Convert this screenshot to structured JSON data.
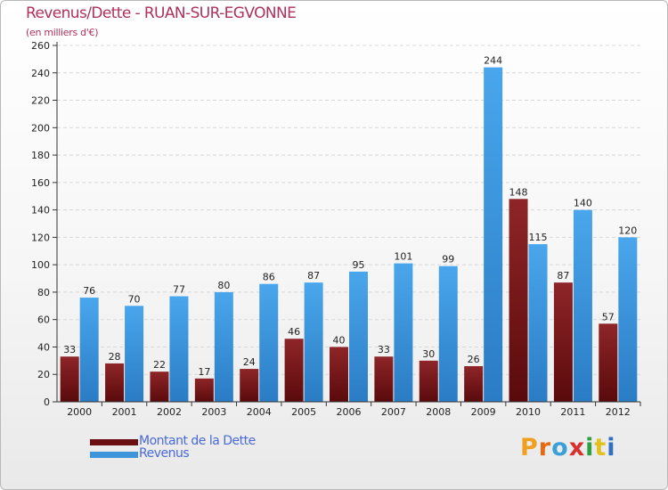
{
  "header": {
    "title": "Revenus/Dette - RUAN-SUR-EGVONNE",
    "subtitle": "(en milliers d'€)"
  },
  "colors": {
    "title": "#b0305c",
    "dette": "#7a1518",
    "revenus": "#3d96dc",
    "legend_text": "#4a6ad8"
  },
  "chart_data": {
    "type": "bar",
    "title": "Revenus/Dette - RUAN-SUR-EGVONNE",
    "ylabel": "(en milliers d'€)",
    "categories": [
      "2000",
      "2001",
      "2002",
      "2003",
      "2004",
      "2005",
      "2006",
      "2007",
      "2008",
      "2009",
      "2010",
      "2011",
      "2012"
    ],
    "series": [
      {
        "name": "Montant de la Dette",
        "values": [
          33,
          28,
          22,
          17,
          24,
          46,
          40,
          33,
          30,
          26,
          148,
          87,
          57
        ]
      },
      {
        "name": "Revenus",
        "values": [
          76,
          70,
          77,
          80,
          86,
          87,
          95,
          101,
          99,
          244,
          115,
          140,
          120
        ]
      }
    ],
    "ylim": [
      0,
      260
    ],
    "yticks": [
      0,
      20,
      40,
      60,
      80,
      100,
      120,
      140,
      160,
      180,
      200,
      220,
      240,
      260
    ],
    "grid": true,
    "legend": "bottom-left"
  },
  "legend": {
    "items": [
      {
        "label": "Montant de la Dette",
        "color_key": "dette"
      },
      {
        "label": "Revenus",
        "color_key": "revenus"
      }
    ]
  },
  "logo": {
    "letters": [
      "P",
      "r",
      "o",
      "x",
      "i",
      "t",
      "i"
    ],
    "colors": [
      "#f0a020",
      "#e86a10",
      "#3ca0d8",
      "#d83030",
      "#2fa040",
      "#e2c020",
      "#3070c0"
    ]
  }
}
